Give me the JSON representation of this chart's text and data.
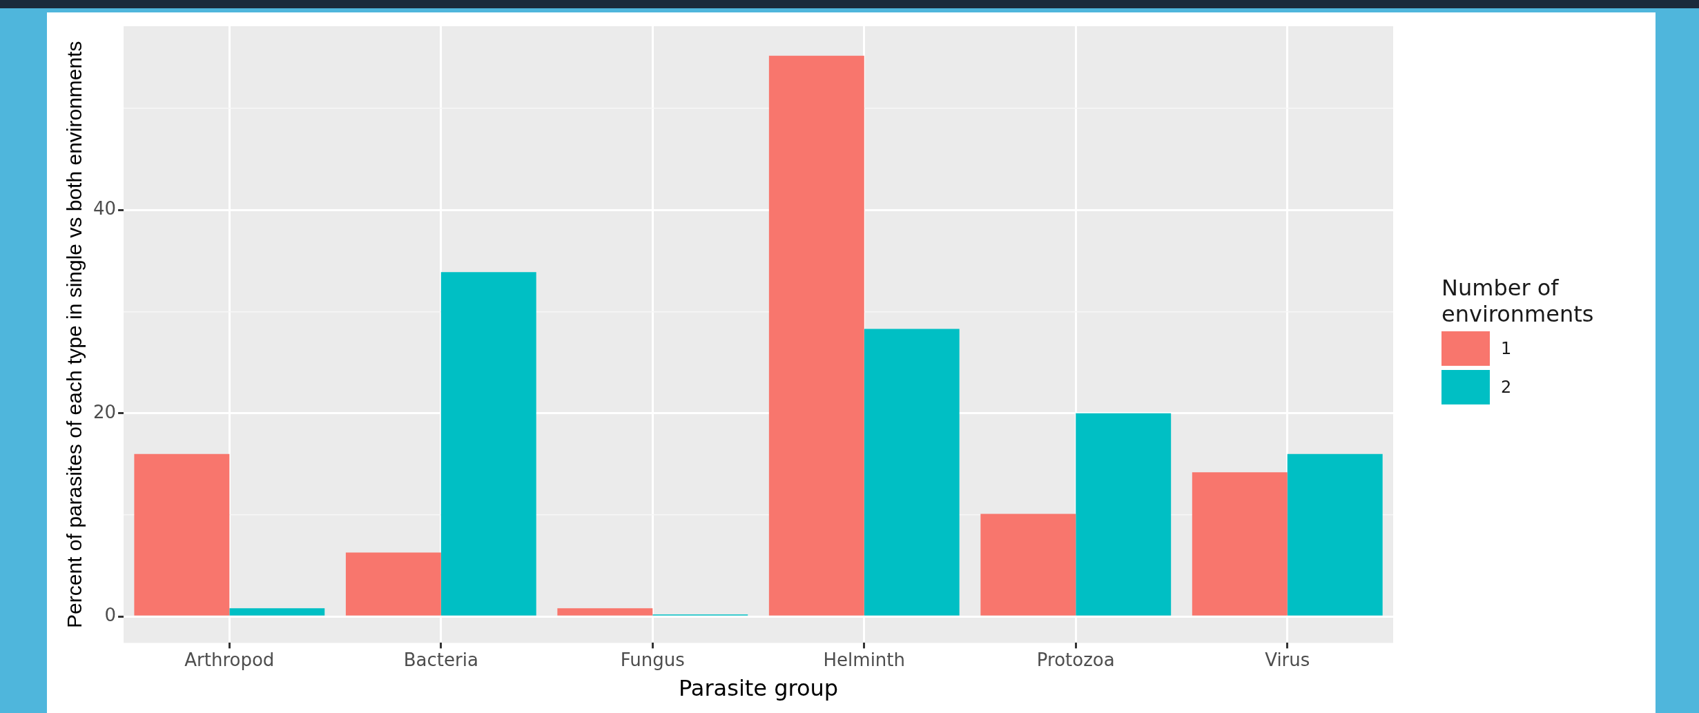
{
  "chart_data": {
    "type": "bar",
    "xlabel": "Parasite group",
    "ylabel": "Percent of parasites of each type in single vs both environments",
    "legend_title": "Number of environments",
    "categories": [
      "Arthropod",
      "Bacteria",
      "Fungus",
      "Helminth",
      "Protozoa",
      "Virus"
    ],
    "series": [
      {
        "name": "1",
        "color": "#f8766d",
        "values": [
          16.0,
          6.3,
          0.8,
          55.2,
          10.1,
          14.2
        ]
      },
      {
        "name": "2",
        "color": "#00bfc4",
        "values": [
          0.8,
          33.9,
          0.2,
          28.3,
          20.0,
          16.0
        ]
      }
    ],
    "ylim": [
      -2.6,
      58.1
    ],
    "yticks": [
      0,
      {
        "value": 10,
        "label": null
      },
      20,
      {
        "value": 30,
        "label": null
      },
      40,
      {
        "value": 50,
        "label": null
      }
    ],
    "grid": true,
    "legend": "right"
  }
}
